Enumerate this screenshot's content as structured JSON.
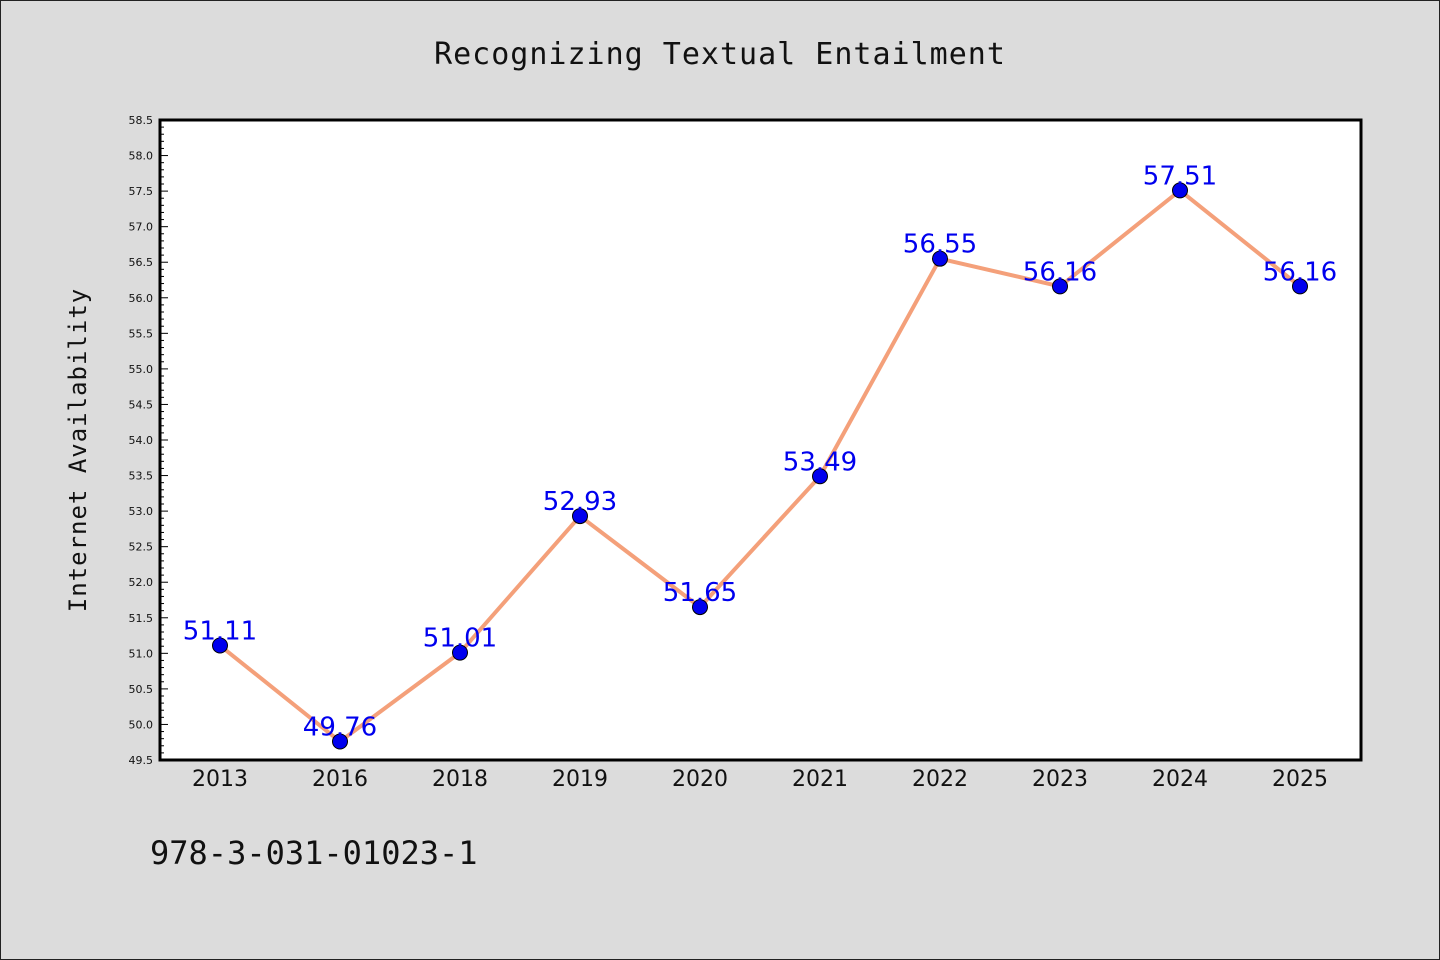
{
  "chart_data": {
    "type": "line",
    "title": "Recognizing Textual Entailment",
    "xlabel": "",
    "ylabel": "Internet Availability",
    "categories": [
      "2013",
      "2016",
      "2018",
      "2019",
      "2020",
      "2021",
      "2022",
      "2023",
      "2024",
      "2025"
    ],
    "series": [
      {
        "values": [
          51.11,
          49.76,
          51.01,
          52.93,
          51.65,
          53.49,
          56.55,
          56.16,
          57.51,
          56.16
        ],
        "labels": [
          "51.11",
          "49.76",
          "51.01",
          "52.93",
          "51.65",
          "53.49",
          "56.55",
          "56.16",
          "57.51",
          "56.16"
        ],
        "line_color": "#f4a07a",
        "marker_color": "#0000ee"
      }
    ],
    "ylim": [
      49.5,
      58.5
    ],
    "yticks": [
      "49.5",
      "50.0",
      "50.5",
      "51.0",
      "51.5",
      "52.0",
      "52.5",
      "53.0",
      "53.5",
      "54.0",
      "54.5",
      "55.0",
      "55.5",
      "56.0",
      "56.5",
      "57.0",
      "57.5",
      "58.0",
      "58.5"
    ],
    "grid": false,
    "label_color": "#0000ee"
  },
  "footer_text": "978-3-031-01023-1"
}
